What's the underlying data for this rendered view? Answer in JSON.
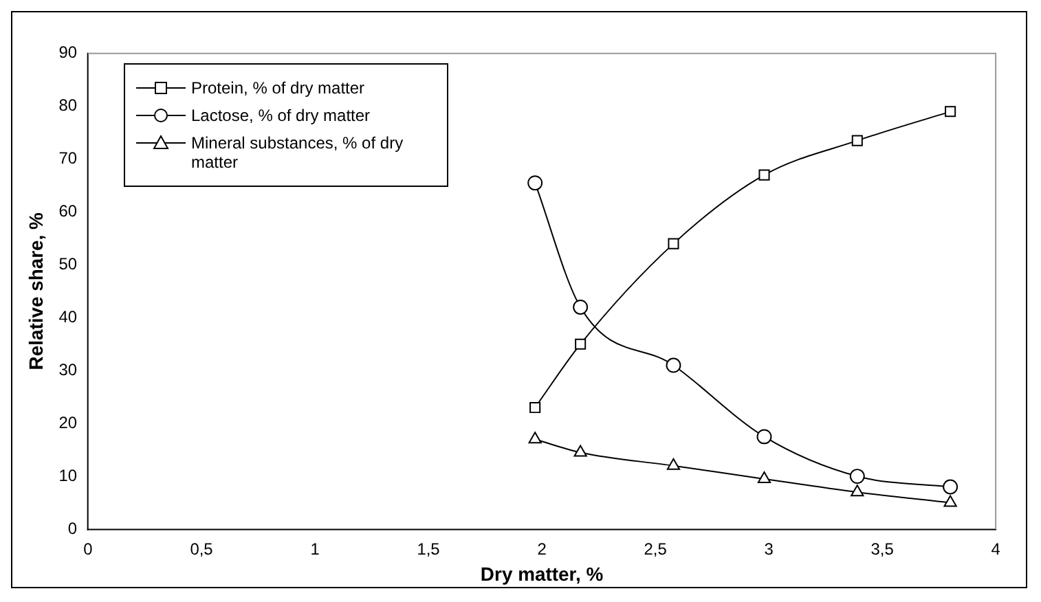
{
  "chart_data": {
    "type": "line",
    "xlabel": "Dry matter, %",
    "ylabel": "Relative share, %",
    "x": [
      1.97,
      2.17,
      2.58,
      2.98,
      3.39,
      3.8
    ],
    "series": [
      {
        "name": "Protein, % of dry matter",
        "color": "#000000",
        "marker": "square",
        "values": [
          23,
          35,
          54,
          67,
          73.5,
          79
        ]
      },
      {
        "name": "Lactose, % of dry matter",
        "color": "#000000",
        "marker": "circle",
        "values": [
          65.5,
          42,
          31,
          17.5,
          10,
          8
        ]
      },
      {
        "name": "Mineral substances, % of dry matter",
        "color": "#000000",
        "marker": "triangle",
        "values": [
          17,
          14.5,
          12,
          9.5,
          7,
          5
        ]
      }
    ],
    "xlim": [
      0,
      4
    ],
    "xticks": [
      0,
      {
        "value": 0.5,
        "label": "0,5"
      },
      1,
      {
        "value": 1.5,
        "label": "1,5"
      },
      2,
      {
        "value": 2.5,
        "label": "2,5"
      },
      3,
      {
        "value": 3.5,
        "label": "3,5"
      },
      4
    ],
    "ylim": [
      0,
      90
    ],
    "yticks": [
      0,
      10,
      20,
      30,
      40,
      50,
      60,
      70,
      80,
      90
    ],
    "grid": false,
    "legend": "top left",
    "line_style": "solid"
  }
}
